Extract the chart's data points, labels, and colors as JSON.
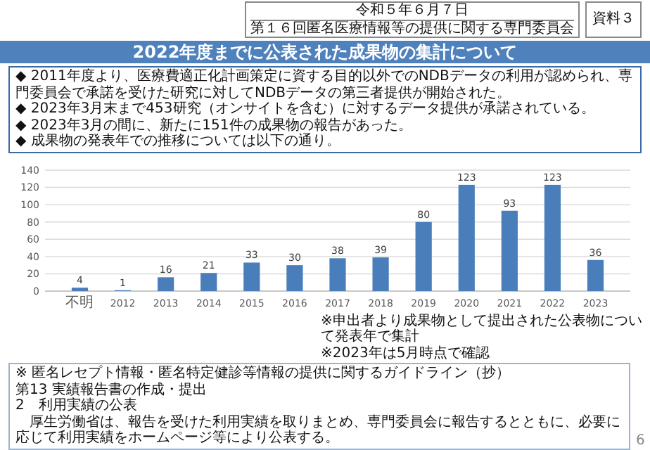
{
  "chart_data": {
    "type": "bar",
    "title": "2022年度までに公表された成果物の集計について",
    "categories": [
      "不明",
      "2012",
      "2013",
      "2014",
      "2015",
      "2016",
      "2017",
      "2018",
      "2019",
      "2020",
      "2021",
      "2022",
      "2023"
    ],
    "values": [
      4,
      1,
      16,
      21,
      33,
      30,
      38,
      39,
      80,
      123,
      93,
      123,
      36
    ],
    "color": "#4a7ebb",
    "ylim": [
      0,
      140
    ],
    "yticks": [
      0,
      20,
      40,
      60,
      80,
      100,
      120,
      140
    ],
    "grid": "y",
    "data_labels": true,
    "annotations": [
      "資料３",
      "令和５年６月７日",
      "第１６回匿名医療情報等の提供に関する専門委員会",
      "◆ 2011年度より、医療費適正化計画策定に資する目的以外でのNDBデータの利用が認められ、専門委員会で承諾を受けた研究に対してNDBデータの第三者提供が開始された。",
      "◆ 2023年3月末まで453研究（オンサイトを含む）に対するデータ提供が承諾されている。",
      "◆ 2023年3月の間に、新たに151件の成果物の報告があった。",
      "◆ 成果物の発表年での推移については以下の通り。",
      "※申出者より成果物として提出された公表物について発表年で集計",
      "※2023年は5月時点で確認",
      "※ 匿名レセプト情報・匿名特定健診等情報の提供に関するガイドライン（抄）",
      "第13 実績報告書の作成・提出",
      "2　利用実績の公表",
      "　厚生労働省は、報告を受けた利用実績を取りまとめ、専門委員会に報告するとともに、必要に応じて利用実績をホームページ等により公表する。",
      "6"
    ]
  }
}
